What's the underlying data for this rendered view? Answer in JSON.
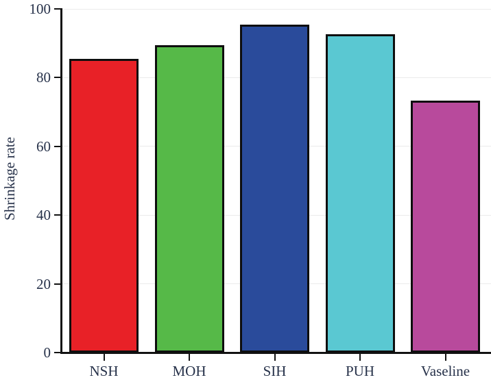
{
  "chart_data": {
    "type": "bar",
    "title": "",
    "xlabel": "",
    "ylabel": "Shrinkage rate",
    "categories": [
      "NSH",
      "MOH",
      "SIH",
      "PUH",
      "Vaseline"
    ],
    "values": [
      85.5,
      89.4,
      95.4,
      92.6,
      73.3
    ],
    "bar_colors": [
      "#e82127",
      "#56b948",
      "#2a4b9b",
      "#5ac8d2",
      "#b84a9c"
    ],
    "bar_border_color": "#0e0e0e",
    "ylim": [
      0,
      100
    ],
    "yticks": [
      0,
      20,
      40,
      60,
      80,
      100
    ],
    "grid": "horizontal light gray gridlines at y ticks",
    "legend": "none",
    "background_color": "#ffffff",
    "axis_color": "#121212",
    "gridline_color": "#ebebeb",
    "text_color": "#27324a"
  }
}
